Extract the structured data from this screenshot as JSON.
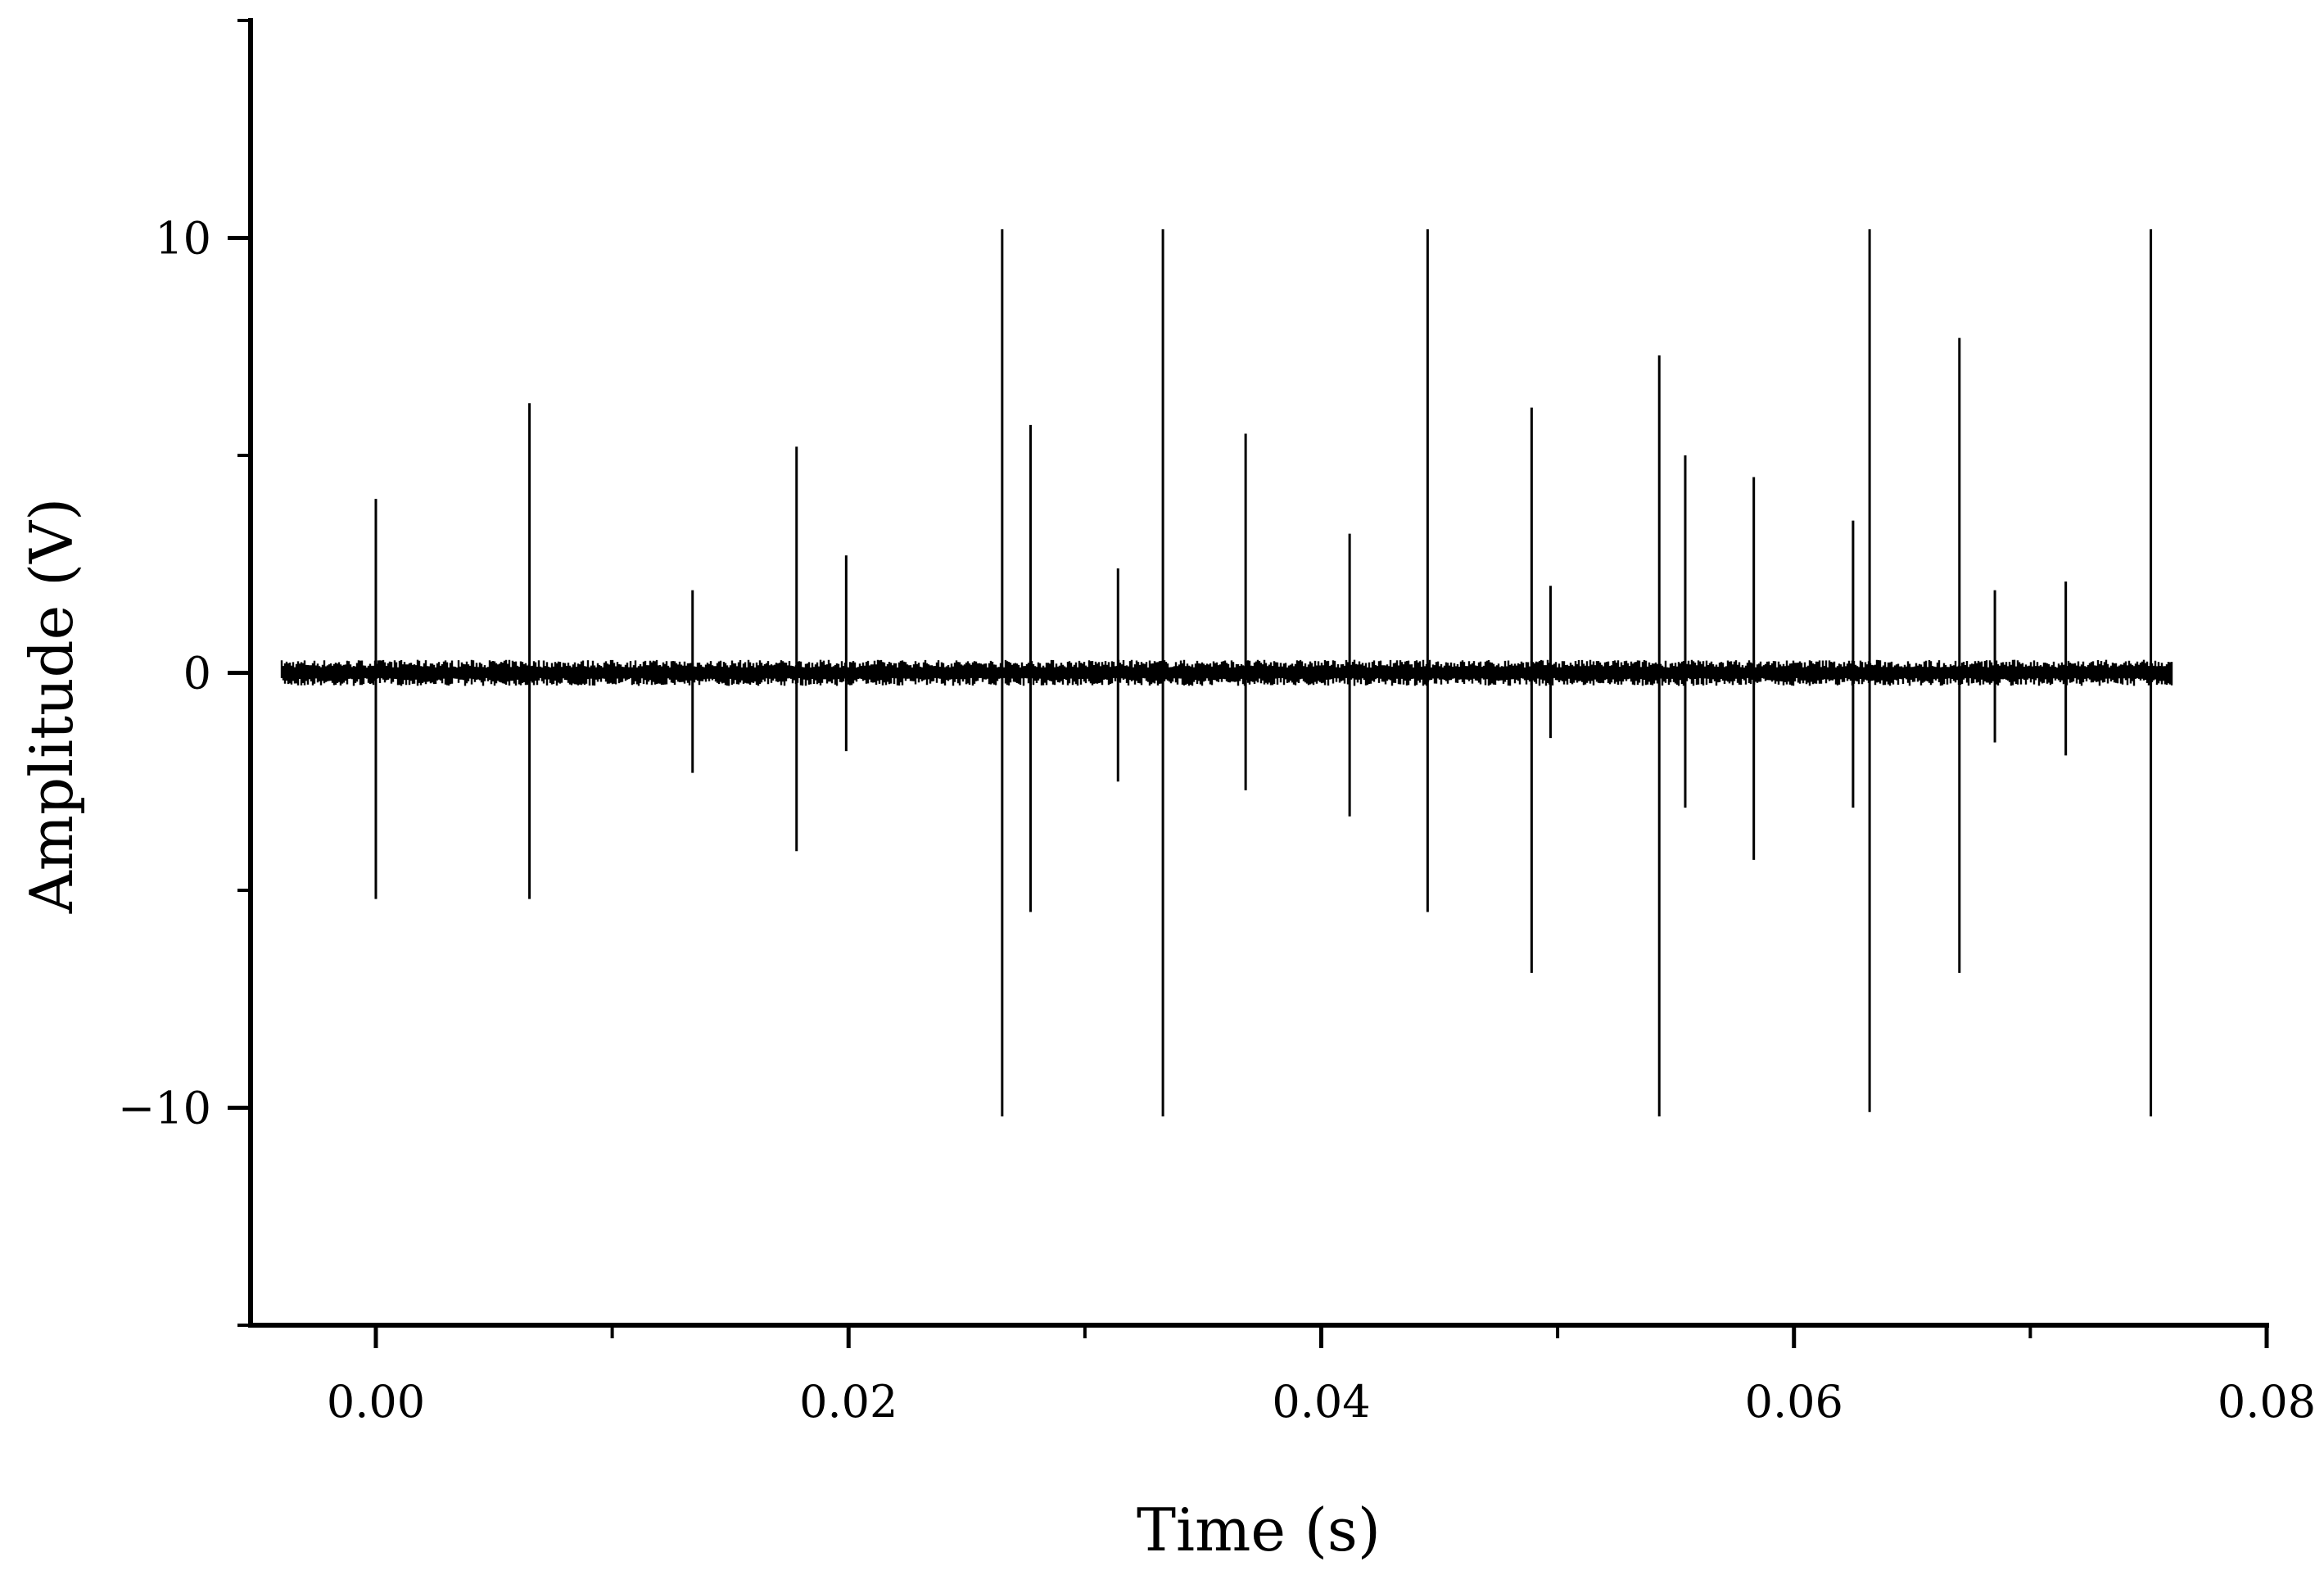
{
  "chart_data": {
    "type": "line",
    "title": "",
    "xlabel": "Time (s)",
    "ylabel": "Amplitude (V)",
    "xlim": [
      -0.0053,
      0.08
    ],
    "ylim": [
      -15,
      15
    ],
    "x_ticks": [
      0.0,
      0.02,
      0.04,
      0.06,
      0.08
    ],
    "x_tick_labels": [
      "0.00",
      "0.02",
      "0.04",
      "0.06",
      "0.08"
    ],
    "y_ticks": [
      -10,
      0,
      10
    ],
    "y_tick_labels": [
      "−10",
      "0",
      "10"
    ],
    "grid": false,
    "legend": "none",
    "line_color": "#000000",
    "series": [
      {
        "baseline_noise_range": [
          -0.3,
          0.3
        ],
        "signal_time_range": [
          -0.004,
          0.076
        ],
        "spikes": [
          {
            "t": 0.0,
            "max": 4.0,
            "min": -5.2
          },
          {
            "t": 0.0065,
            "max": 6.2,
            "min": -5.2
          },
          {
            "t": 0.0134,
            "max": 1.9,
            "min": -2.3
          },
          {
            "t": 0.0178,
            "max": 5.2,
            "min": -4.1
          },
          {
            "t": 0.0199,
            "max": 2.7,
            "min": -1.8
          },
          {
            "t": 0.0265,
            "max": 10.2,
            "min": -10.2
          },
          {
            "t": 0.0277,
            "max": 5.7,
            "min": -5.5
          },
          {
            "t": 0.0314,
            "max": 2.4,
            "min": -2.5
          },
          {
            "t": 0.0333,
            "max": 10.2,
            "min": -10.2
          },
          {
            "t": 0.0368,
            "max": 5.5,
            "min": -2.7
          },
          {
            "t": 0.0412,
            "max": 3.2,
            "min": -3.3
          },
          {
            "t": 0.0445,
            "max": 10.2,
            "min": -5.5
          },
          {
            "t": 0.0489,
            "max": 6.1,
            "min": -6.9
          },
          {
            "t": 0.0497,
            "max": 2.0,
            "min": -1.5
          },
          {
            "t": 0.0543,
            "max": 7.3,
            "min": -10.2
          },
          {
            "t": 0.0554,
            "max": 5.0,
            "min": -3.1
          },
          {
            "t": 0.0583,
            "max": 4.5,
            "min": -4.3
          },
          {
            "t": 0.0625,
            "max": 3.5,
            "min": -3.1
          },
          {
            "t": 0.0632,
            "max": 10.2,
            "min": -10.1
          },
          {
            "t": 0.067,
            "max": 7.7,
            "min": -6.9
          },
          {
            "t": 0.0685,
            "max": 1.9,
            "min": -1.6
          },
          {
            "t": 0.0715,
            "max": 2.1,
            "min": -1.9
          },
          {
            "t": 0.0751,
            "max": 10.2,
            "min": -10.2
          }
        ]
      }
    ]
  }
}
